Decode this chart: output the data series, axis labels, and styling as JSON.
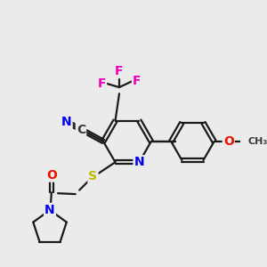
{
  "background_color": "#ebebeb",
  "atom_colors": {
    "C": "#3a3a3a",
    "N": "#0000ee",
    "O": "#ee1100",
    "S": "#bbbb00",
    "F": "#ee00bb"
  },
  "bond_color": "#1a1a1a",
  "bond_width": 1.6,
  "dpi": 100,
  "fig_size": [
    3.0,
    3.0
  ]
}
